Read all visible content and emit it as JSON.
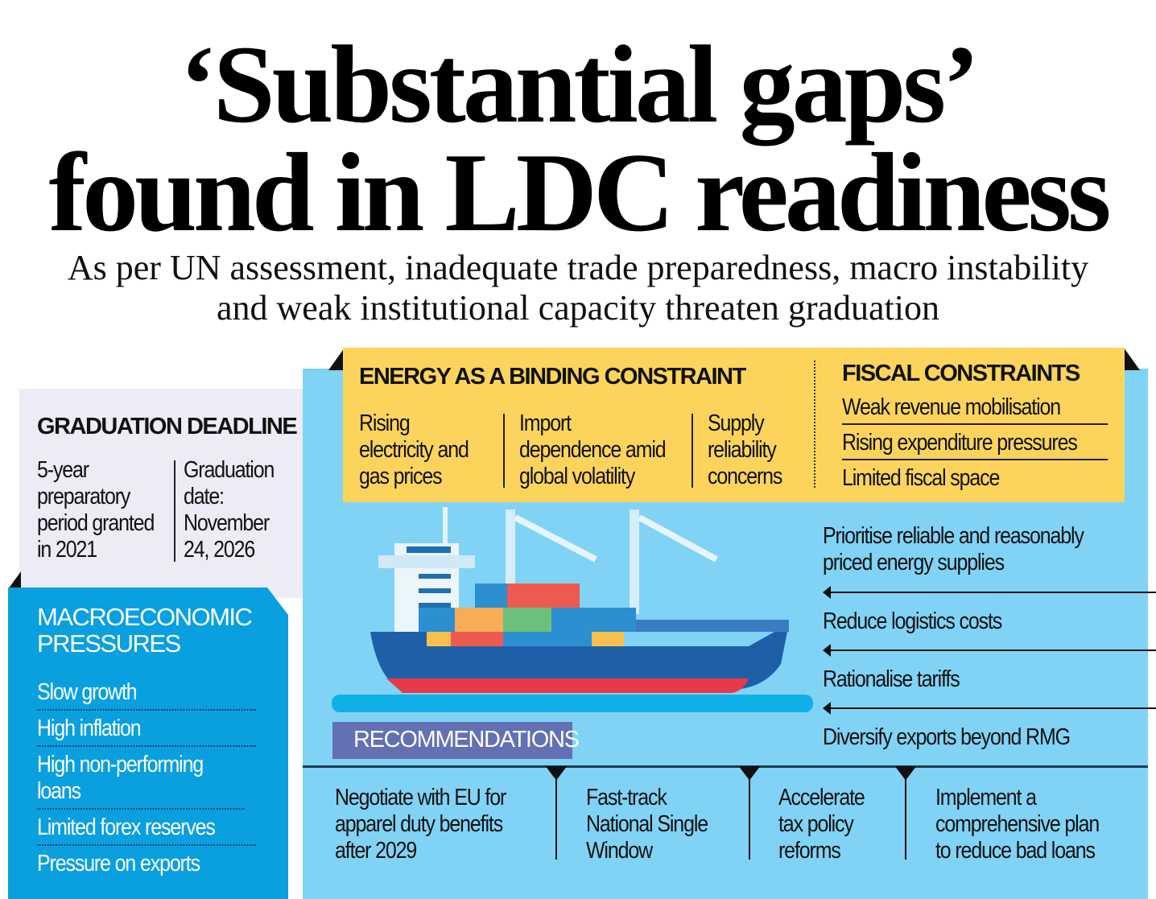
{
  "title": {
    "line1": "‘Substantial gaps’",
    "line2": "found in LDC readiness",
    "subtitle_line1": "As per UN assessment, inadequate trade preparedness, macro instability",
    "subtitle_line2": "and weak institutional capacity threaten graduation"
  },
  "graduation": {
    "heading": "GRADUATION DEADLINE",
    "left": [
      "5-year",
      "preparatory",
      "period granted",
      "in 2021"
    ],
    "right": [
      "Graduation",
      "date:",
      "November",
      "24, 2026"
    ]
  },
  "macro": {
    "heading_1": "MACROECONOMIC",
    "heading_2": "PRESSURES",
    "items": [
      "Slow growth",
      "High inflation",
      "High non-performing loans",
      "Limited forex reserves",
      "Pressure on exports"
    ]
  },
  "energy": {
    "heading": "ENERGY AS A BINDING CONSTRAINT",
    "cols": [
      [
        "Rising",
        "electricity and",
        "gas prices"
      ],
      [
        "Import",
        "dependence amid",
        "global volatility"
      ],
      [
        "Supply",
        "reliability",
        "concerns"
      ]
    ]
  },
  "fiscal": {
    "heading": "FISCAL CONSTRAINTS",
    "items": [
      "Weak revenue mobilisation",
      "Rising expenditure pressures",
      "Limited fiscal space"
    ]
  },
  "right_recs": [
    [
      "Prioritise reliable and reasonably",
      "priced energy supplies"
    ],
    [
      "Reduce logistics costs"
    ],
    [
      "Rationalise tariffs"
    ],
    [
      "Diversify exports beyond RMG"
    ]
  ],
  "recommendations": {
    "label": "RECOMMENDATIONS",
    "items": [
      [
        "Negotiate with EU for",
        "apparel duty benefits",
        "after 2029"
      ],
      [
        "Fast-track",
        "National Single",
        "Window"
      ],
      [
        "Accelerate",
        "tax policy",
        "reforms"
      ],
      [
        "Implement a",
        "comprehensive plan",
        "to reduce bad loans"
      ]
    ]
  },
  "colors": {
    "light_blue": "#80d3f5",
    "yellow": "#fcd45c",
    "macro_blue": "#0aa0e0",
    "grad_bg": "#ecebf6",
    "purple": "#6470b4"
  }
}
